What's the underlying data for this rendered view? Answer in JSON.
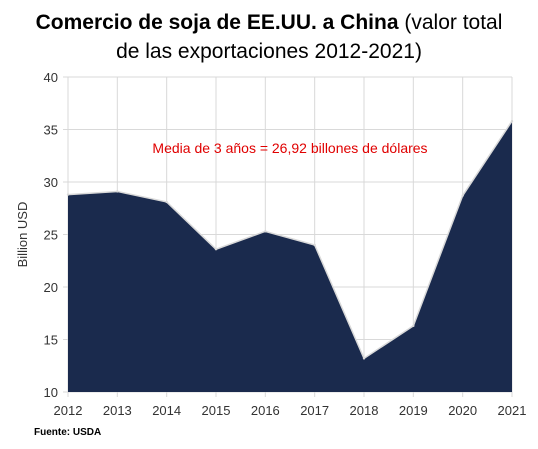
{
  "title": {
    "bold": "Comercio de soja de EE.UU. a China",
    "rest": " (valor total",
    "line2": "de las exportaciones 2012-2021)"
  },
  "source": "Fuente: USDA",
  "chart_data": {
    "type": "area",
    "x": [
      "2012",
      "2013",
      "2014",
      "2015",
      "2016",
      "2017",
      "2018",
      "2019",
      "2020",
      "2021"
    ],
    "series": [
      {
        "values": [
          28.8,
          29.1,
          28.1,
          23.6,
          25.3,
          24.0,
          13.2,
          16.3,
          28.7,
          35.8
        ]
      }
    ],
    "ylabel": "Billion USD",
    "ylim": [
      10,
      40
    ],
    "yticks": [
      "10",
      "15",
      "20",
      "25",
      "30",
      "35",
      "40"
    ],
    "grid": true,
    "annotation": "Media de 3 años = 26,92 billones de dólares",
    "colors": {
      "fill": "#1a2a4d",
      "line": "#d9d9d9",
      "grid": "#d9d9d9",
      "annotation": "#e00000"
    }
  }
}
